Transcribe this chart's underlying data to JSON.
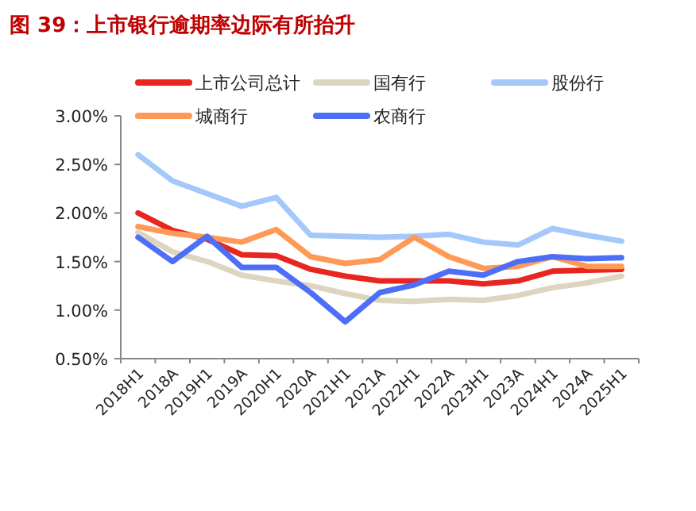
{
  "chart_data": {
    "type": "line",
    "title": "图 39：上市银行逾期率边际有所抬升",
    "categories": [
      "2018H1",
      "2018A",
      "2019H1",
      "2019A",
      "2020H1",
      "2020A",
      "2021H1",
      "2021A",
      "2022H1",
      "2022A",
      "2023H1",
      "2023A",
      "2024H1",
      "2024A",
      "2025H1"
    ],
    "series": [
      {
        "name": "上市公司总计",
        "color": "#e8251f",
        "values": [
          2.0,
          1.82,
          1.73,
          1.57,
          1.56,
          1.42,
          1.35,
          1.3,
          1.3,
          1.3,
          1.27,
          1.3,
          1.4,
          1.41,
          1.42
        ]
      },
      {
        "name": "国有行",
        "color": "#ddd5c0",
        "values": [
          1.8,
          1.6,
          1.5,
          1.36,
          1.3,
          1.25,
          1.17,
          1.1,
          1.09,
          1.11,
          1.1,
          1.15,
          1.23,
          1.28,
          1.35
        ]
      },
      {
        "name": "股份行",
        "color": "#a5c8fb",
        "values": [
          2.6,
          2.33,
          2.2,
          2.07,
          2.16,
          1.77,
          1.76,
          1.75,
          1.76,
          1.78,
          1.7,
          1.67,
          1.84,
          1.77,
          1.71
        ]
      },
      {
        "name": "城商行",
        "color": "#ff9a56",
        "values": [
          1.86,
          1.79,
          1.75,
          1.7,
          1.83,
          1.55,
          1.48,
          1.52,
          1.75,
          1.55,
          1.43,
          1.45,
          1.55,
          1.45,
          1.45
        ]
      },
      {
        "name": "农商行",
        "color": "#4d6ef7",
        "values": [
          1.75,
          1.5,
          1.76,
          1.44,
          1.44,
          1.18,
          0.88,
          1.18,
          1.26,
          1.4,
          1.36,
          1.5,
          1.55,
          1.53,
          1.54
        ]
      }
    ],
    "ylim": [
      0.5,
      3.0
    ],
    "yticks": [
      {
        "value": 0.5,
        "label": "0.50%"
      },
      {
        "value": 1.0,
        "label": "1.00%"
      },
      {
        "value": 1.5,
        "label": "1.50%"
      },
      {
        "value": 2.0,
        "label": "2.00%"
      },
      {
        "value": 2.5,
        "label": "2.50%"
      },
      {
        "value": 3.0,
        "label": "3.00%"
      }
    ],
    "grid": false,
    "legend": "top",
    "marker": "none",
    "line_style": "solid"
  }
}
